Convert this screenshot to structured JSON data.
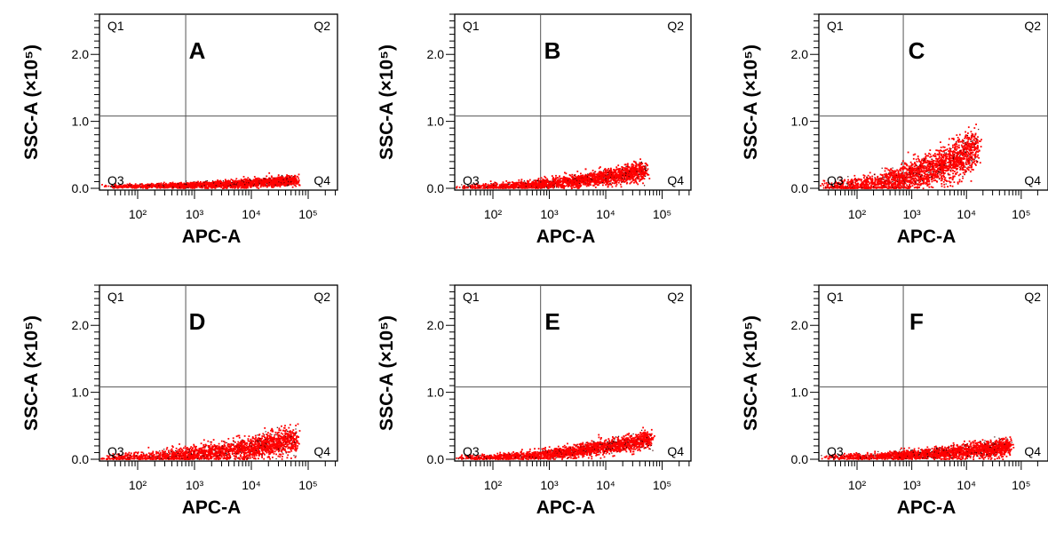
{
  "chart_data": [
    {
      "type": "scatter",
      "panel": "A",
      "xlabel": "APC-A",
      "ylabel": "SSC-A (×10⁵)",
      "x_scale": "log",
      "xticks": [
        "10²",
        "10³",
        "10⁴",
        "10⁵"
      ],
      "yticks": [
        "0.0",
        "1.0",
        "2.0"
      ],
      "ylim": [
        0,
        2.6
      ],
      "gate": {
        "x": 700,
        "y": 1.08
      },
      "quadrants": [
        "Q1",
        "Q2",
        "Q3",
        "Q4"
      ],
      "cloud": {
        "x_range": [
          20,
          60000
        ],
        "y_start": 0.04,
        "y_end": 0.13,
        "spread": 0.03
      }
    },
    {
      "type": "scatter",
      "panel": "B",
      "xlabel": "APC-A",
      "ylabel": "SSC-A (×10⁵)",
      "x_scale": "log",
      "xticks": [
        "10²",
        "10³",
        "10⁴",
        "10⁵"
      ],
      "yticks": [
        "0.0",
        "1.0",
        "2.0"
      ],
      "ylim": [
        0,
        2.6
      ],
      "gate": {
        "x": 700,
        "y": 1.08
      },
      "quadrants": [
        "Q1",
        "Q2",
        "Q3",
        "Q4"
      ],
      "cloud": {
        "x_range": [
          20,
          50000
        ],
        "y_start": 0.03,
        "y_end": 0.28,
        "spread": 0.05
      }
    },
    {
      "type": "scatter",
      "panel": "C",
      "xlabel": "APC-A",
      "ylabel": "SSC-A (×10⁵)",
      "x_scale": "log",
      "xticks": [
        "10²",
        "10³",
        "10⁴",
        "10⁵"
      ],
      "yticks": [
        "0.0",
        "1.0",
        "2.0"
      ],
      "ylim": [
        0,
        2.6
      ],
      "gate": {
        "x": 700,
        "y": 1.08
      },
      "quadrants": [
        "Q1",
        "Q2",
        "Q3",
        "Q4"
      ],
      "cloud": {
        "x_range": [
          20,
          15000
        ],
        "y_start": 0.03,
        "y_end": 0.6,
        "spread": 0.12
      }
    },
    {
      "type": "scatter",
      "panel": "D",
      "xlabel": "APC-A",
      "ylabel": "SSC-A (×10⁵)",
      "x_scale": "log",
      "xticks": [
        "10²",
        "10³",
        "10⁴",
        "10⁵"
      ],
      "yticks": [
        "0.0",
        "1.0",
        "2.0"
      ],
      "ylim": [
        0,
        2.6
      ],
      "gate": {
        "x": 700,
        "y": 1.08
      },
      "quadrants": [
        "Q1",
        "Q2",
        "Q3",
        "Q4"
      ],
      "cloud": {
        "x_range": [
          20,
          60000
        ],
        "y_start": 0.03,
        "y_end": 0.3,
        "spread": 0.08
      }
    },
    {
      "type": "scatter",
      "panel": "E",
      "xlabel": "APC-A",
      "ylabel": "SSC-A (×10⁵)",
      "x_scale": "log",
      "xticks": [
        "10²",
        "10³",
        "10⁴",
        "10⁵"
      ],
      "yticks": [
        "0.0",
        "1.0",
        "2.0"
      ],
      "ylim": [
        0,
        2.6
      ],
      "gate": {
        "x": 700,
        "y": 1.08
      },
      "quadrants": [
        "Q1",
        "Q2",
        "Q3",
        "Q4"
      ],
      "cloud": {
        "x_range": [
          20,
          60000
        ],
        "y_start": 0.03,
        "y_end": 0.32,
        "spread": 0.05
      }
    },
    {
      "type": "scatter",
      "panel": "F",
      "xlabel": "APC-A",
      "ylabel": "SSC-A (×10⁵)",
      "x_scale": "log",
      "xticks": [
        "10²",
        "10³",
        "10⁴",
        "10⁵"
      ],
      "yticks": [
        "0.0",
        "1.0",
        "2.0"
      ],
      "ylim": [
        0,
        2.6
      ],
      "gate": {
        "x": 700,
        "y": 1.08
      },
      "quadrants": [
        "Q1",
        "Q2",
        "Q3",
        "Q4"
      ],
      "cloud": {
        "x_range": [
          20,
          60000
        ],
        "y_start": 0.04,
        "y_end": 0.2,
        "spread": 0.05
      }
    }
  ],
  "colors": {
    "points": "#ff0000",
    "dark_points": "#3a0000",
    "axis": "#000000",
    "gate": "#555555"
  }
}
